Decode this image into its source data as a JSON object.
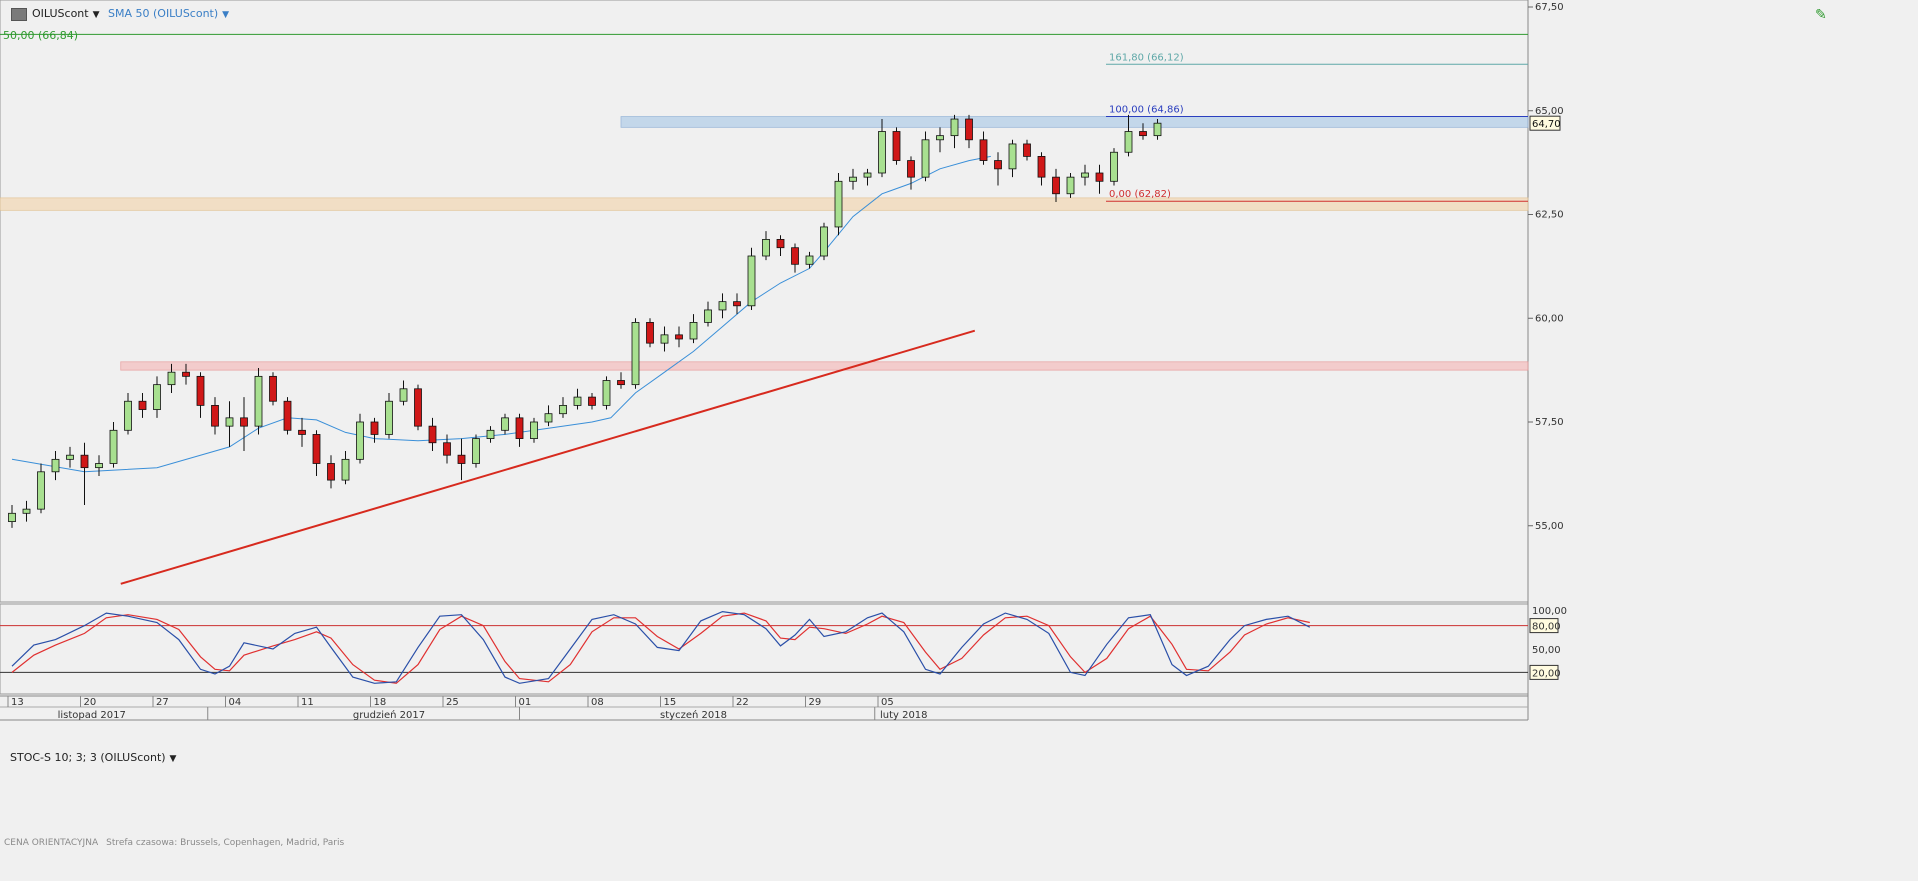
{
  "header": {
    "symbol": "OILUScont",
    "indicator": "SMA 50 (OILUScont)",
    "fib_top_label": "50,00 (66,84)",
    "stoch_label": "STOC-S 10; 3; 3 (OILUScont)",
    "footer_label": "CENA ORIENTACYJNA",
    "footer_timezone": "Strefa czasowa: Brussels, Copenhagen, Madrid, Paris"
  },
  "chart_data": {
    "type": "candlestick",
    "price_axis": {
      "range": [
        53.5,
        67.5
      ],
      "ticks": [
        "67,50",
        "65,00",
        "62,50",
        "60,00",
        "57,50",
        "55,00"
      ],
      "tick_values": [
        67.5,
        65,
        62.5,
        60,
        57.5,
        55
      ]
    },
    "stoch_axis": {
      "ticks": [
        "100,00",
        "80,00",
        "50,00",
        "20,00"
      ],
      "tick_values": [
        100,
        80,
        50,
        20
      ],
      "range": [
        0,
        100
      ]
    },
    "current_price": {
      "value": 64.7,
      "label": "64,70"
    },
    "x_ticks": [
      "13",
      "20",
      "27",
      "04",
      "11",
      "18",
      "25",
      "01",
      "08",
      "15",
      "22",
      "29",
      "05"
    ],
    "x_tick_index": [
      0,
      5,
      10,
      15,
      20,
      25,
      30,
      35,
      40,
      45,
      50,
      55,
      60
    ],
    "months": [
      {
        "label": "listopad 2017",
        "index": 5.5
      },
      {
        "label": "grudzień 2017",
        "index": 26
      },
      {
        "label": "styczeń 2018",
        "index": 47
      },
      {
        "label": "luty 2018",
        "index": 61.5
      }
    ],
    "month_separators": [
      13.5,
      35,
      59.5
    ],
    "fibonacci": [
      {
        "label": "161,80 (66,12)",
        "value": 66.12,
        "color": "#5fa8a8"
      },
      {
        "label": "100,00 (64,86)",
        "value": 64.86,
        "color": "#2b3fbf"
      },
      {
        "label": "0,00 (62,82)",
        "value": 62.82,
        "color": "#d03030"
      },
      {
        "label": "50,00 (66,84)",
        "value": 66.84,
        "color": "#2f9a2f"
      }
    ],
    "zones": [
      {
        "from": 64.6,
        "to": 64.86,
        "start_index": 42,
        "color": "#bcd3ea"
      },
      {
        "from": 62.6,
        "to": 62.9,
        "start_index": -1,
        "color": "#f2dcbe"
      },
      {
        "from": 58.75,
        "to": 58.95,
        "start_index": 7.5,
        "color": "#f4c6c6"
      }
    ],
    "trendline": {
      "start": [
        7.5,
        53.6
      ],
      "end": [
        66.4,
        59.7
      ],
      "color": "#d72a1e"
    },
    "stoch_levels": [
      80,
      20
    ],
    "ohlc": [
      [
        55.1,
        55.5,
        54.95,
        55.3
      ],
      [
        55.3,
        55.6,
        55.1,
        55.4
      ],
      [
        55.4,
        56.5,
        55.3,
        56.3
      ],
      [
        56.3,
        56.8,
        56.1,
        56.6
      ],
      [
        56.6,
        56.9,
        56.4,
        56.7
      ],
      [
        56.7,
        57.0,
        55.5,
        56.4
      ],
      [
        56.4,
        56.7,
        56.2,
        56.5
      ],
      [
        56.5,
        57.5,
        56.4,
        57.3
      ],
      [
        57.3,
        58.2,
        57.2,
        58.0
      ],
      [
        58.0,
        58.2,
        57.6,
        57.8
      ],
      [
        57.8,
        58.6,
        57.6,
        58.4
      ],
      [
        58.4,
        58.9,
        58.2,
        58.7
      ],
      [
        58.7,
        58.9,
        58.4,
        58.6
      ],
      [
        58.6,
        58.7,
        57.6,
        57.9
      ],
      [
        57.9,
        58.1,
        57.2,
        57.4
      ],
      [
        57.4,
        58.0,
        56.9,
        57.6
      ],
      [
        57.6,
        58.1,
        56.8,
        57.4
      ],
      [
        57.4,
        58.8,
        57.2,
        58.6
      ],
      [
        58.6,
        58.7,
        57.9,
        58.0
      ],
      [
        58.0,
        58.1,
        57.2,
        57.3
      ],
      [
        57.3,
        57.6,
        56.9,
        57.2
      ],
      [
        57.2,
        57.3,
        56.2,
        56.5
      ],
      [
        56.5,
        56.7,
        55.9,
        56.1
      ],
      [
        56.1,
        56.8,
        56.0,
        56.6
      ],
      [
        56.6,
        57.7,
        56.5,
        57.5
      ],
      [
        57.5,
        57.6,
        57.0,
        57.2
      ],
      [
        57.2,
        58.2,
        57.1,
        58.0
      ],
      [
        58.0,
        58.5,
        57.9,
        58.3
      ],
      [
        58.3,
        58.4,
        57.3,
        57.4
      ],
      [
        57.4,
        57.6,
        56.8,
        57.0
      ],
      [
        57.0,
        57.2,
        56.5,
        56.7
      ],
      [
        56.7,
        57.1,
        56.1,
        56.5
      ],
      [
        56.5,
        57.2,
        56.4,
        57.1
      ],
      [
        57.1,
        57.4,
        57.0,
        57.3
      ],
      [
        57.3,
        57.7,
        57.2,
        57.6
      ],
      [
        57.6,
        57.7,
        56.9,
        57.1
      ],
      [
        57.1,
        57.6,
        57.0,
        57.5
      ],
      [
        57.5,
        57.9,
        57.4,
        57.7
      ],
      [
        57.7,
        58.1,
        57.6,
        57.9
      ],
      [
        57.9,
        58.3,
        57.8,
        58.1
      ],
      [
        58.1,
        58.2,
        57.8,
        57.9
      ],
      [
        57.9,
        58.6,
        57.8,
        58.5
      ],
      [
        58.5,
        58.7,
        58.3,
        58.4
      ],
      [
        58.4,
        60.0,
        58.3,
        59.9
      ],
      [
        59.9,
        60.0,
        59.3,
        59.4
      ],
      [
        59.4,
        59.8,
        59.2,
        59.6
      ],
      [
        59.6,
        59.8,
        59.3,
        59.5
      ],
      [
        59.5,
        60.1,
        59.4,
        59.9
      ],
      [
        59.9,
        60.4,
        59.8,
        60.2
      ],
      [
        60.2,
        60.6,
        60.0,
        60.4
      ],
      [
        60.4,
        60.6,
        60.1,
        60.3
      ],
      [
        60.3,
        61.7,
        60.2,
        61.5
      ],
      [
        61.5,
        62.1,
        61.4,
        61.9
      ],
      [
        61.9,
        62.0,
        61.5,
        61.7
      ],
      [
        61.7,
        61.8,
        61.1,
        61.3
      ],
      [
        61.3,
        61.6,
        61.2,
        61.5
      ],
      [
        61.5,
        62.3,
        61.4,
        62.2
      ],
      [
        62.2,
        63.5,
        62.0,
        63.3
      ],
      [
        63.3,
        63.6,
        63.1,
        63.4
      ],
      [
        63.4,
        63.6,
        63.2,
        63.5
      ],
      [
        63.5,
        64.8,
        63.4,
        64.5
      ],
      [
        64.5,
        64.6,
        63.7,
        63.8
      ],
      [
        63.8,
        63.9,
        63.1,
        63.4
      ],
      [
        63.4,
        64.5,
        63.3,
        64.3
      ],
      [
        64.3,
        64.6,
        64.0,
        64.4
      ],
      [
        64.4,
        64.9,
        64.1,
        64.8
      ],
      [
        64.8,
        64.9,
        64.1,
        64.3
      ],
      [
        64.3,
        64.5,
        63.7,
        63.8
      ],
      [
        63.8,
        64.0,
        63.2,
        63.6
      ],
      [
        63.6,
        64.3,
        63.4,
        64.2
      ],
      [
        64.2,
        64.3,
        63.8,
        63.9
      ],
      [
        63.9,
        64.0,
        63.2,
        63.4
      ],
      [
        63.4,
        63.6,
        62.8,
        63.0
      ],
      [
        63.0,
        63.5,
        62.9,
        63.4
      ],
      [
        63.4,
        63.7,
        63.2,
        63.5
      ],
      [
        63.5,
        63.7,
        63.0,
        63.3
      ],
      [
        63.3,
        64.1,
        63.2,
        64.0
      ],
      [
        64.0,
        64.9,
        63.9,
        64.5
      ],
      [
        64.5,
        64.7,
        64.3,
        64.4
      ],
      [
        64.4,
        64.8,
        64.3,
        64.7
      ]
    ],
    "sma50": [
      [
        0,
        56.6
      ],
      [
        5,
        56.3
      ],
      [
        10,
        56.4
      ],
      [
        15,
        56.9
      ],
      [
        17,
        57.35
      ],
      [
        19,
        57.6
      ],
      [
        21,
        57.55
      ],
      [
        23,
        57.25
      ],
      [
        25,
        57.1
      ],
      [
        28,
        57.05
      ],
      [
        31,
        57.1
      ],
      [
        34,
        57.2
      ],
      [
        37,
        57.35
      ],
      [
        40,
        57.5
      ],
      [
        41.3,
        57.6
      ],
      [
        43,
        58.2
      ],
      [
        45,
        58.7
      ],
      [
        47,
        59.2
      ],
      [
        49,
        59.8
      ],
      [
        51,
        60.4
      ],
      [
        53,
        60.85
      ],
      [
        55,
        61.2
      ],
      [
        56,
        61.6
      ],
      [
        58,
        62.45
      ],
      [
        60,
        63.0
      ],
      [
        62,
        63.25
      ],
      [
        64,
        63.6
      ],
      [
        66,
        63.8
      ],
      [
        67.5,
        63.9
      ]
    ],
    "stoch_k": [
      [
        0,
        28
      ],
      [
        1.5,
        55
      ],
      [
        3,
        62
      ],
      [
        5,
        80
      ],
      [
        6.5,
        96
      ],
      [
        8,
        92
      ],
      [
        10,
        84
      ],
      [
        11.5,
        62
      ],
      [
        13,
        24
      ],
      [
        14,
        18
      ],
      [
        15,
        28
      ],
      [
        16,
        58
      ],
      [
        18,
        50
      ],
      [
        19.5,
        70
      ],
      [
        21,
        78
      ],
      [
        22,
        52
      ],
      [
        23.5,
        14
      ],
      [
        25,
        6
      ],
      [
        26.5,
        8
      ],
      [
        28,
        52
      ],
      [
        29.5,
        92
      ],
      [
        31,
        94
      ],
      [
        32.5,
        62
      ],
      [
        34,
        14
      ],
      [
        35,
        6
      ],
      [
        37,
        12
      ],
      [
        38.5,
        50
      ],
      [
        40,
        88
      ],
      [
        41.5,
        94
      ],
      [
        43,
        82
      ],
      [
        44.5,
        52
      ],
      [
        46,
        48
      ],
      [
        47.5,
        86
      ],
      [
        49,
        98
      ],
      [
        50.5,
        94
      ],
      [
        52,
        76
      ],
      [
        53,
        54
      ],
      [
        54,
        68
      ],
      [
        55,
        88
      ],
      [
        56,
        66
      ],
      [
        57.5,
        72
      ],
      [
        59,
        90
      ],
      [
        60,
        96
      ],
      [
        61.5,
        72
      ],
      [
        63,
        24
      ],
      [
        64,
        18
      ],
      [
        65.5,
        52
      ],
      [
        67,
        82
      ],
      [
        68.5,
        96
      ],
      [
        70,
        88
      ],
      [
        71.5,
        70
      ],
      [
        73,
        20
      ],
      [
        74,
        16
      ],
      [
        75.5,
        56
      ],
      [
        77,
        90
      ],
      [
        78.5,
        94
      ],
      [
        80,
        30
      ],
      [
        81,
        16
      ],
      [
        82.5,
        28
      ],
      [
        84,
        62
      ],
      [
        85,
        80
      ],
      [
        86.5,
        88
      ],
      [
        88,
        92
      ],
      [
        89.5,
        78
      ]
    ],
    "stoch_d": [
      [
        0,
        20
      ],
      [
        1.5,
        42
      ],
      [
        3,
        55
      ],
      [
        5,
        70
      ],
      [
        6.5,
        90
      ],
      [
        8,
        94
      ],
      [
        10,
        88
      ],
      [
        11.5,
        75
      ],
      [
        13,
        40
      ],
      [
        14,
        24
      ],
      [
        15,
        22
      ],
      [
        16,
        42
      ],
      [
        18,
        54
      ],
      [
        19.5,
        62
      ],
      [
        21,
        72
      ],
      [
        22,
        64
      ],
      [
        23.5,
        30
      ],
      [
        25,
        10
      ],
      [
        26.5,
        6
      ],
      [
        28,
        30
      ],
      [
        29.5,
        75
      ],
      [
        31,
        92
      ],
      [
        32.5,
        80
      ],
      [
        34,
        34
      ],
      [
        35,
        12
      ],
      [
        37,
        8
      ],
      [
        38.5,
        30
      ],
      [
        40,
        72
      ],
      [
        41.5,
        90
      ],
      [
        43,
        90
      ],
      [
        44.5,
        66
      ],
      [
        46,
        50
      ],
      [
        47.5,
        70
      ],
      [
        49,
        92
      ],
      [
        50.5,
        96
      ],
      [
        52,
        86
      ],
      [
        53,
        64
      ],
      [
        54,
        62
      ],
      [
        55,
        78
      ],
      [
        56,
        76
      ],
      [
        57.5,
        70
      ],
      [
        59,
        82
      ],
      [
        60,
        92
      ],
      [
        61.5,
        84
      ],
      [
        63,
        46
      ],
      [
        64,
        24
      ],
      [
        65.5,
        38
      ],
      [
        67,
        68
      ],
      [
        68.5,
        90
      ],
      [
        70,
        92
      ],
      [
        71.5,
        80
      ],
      [
        73,
        40
      ],
      [
        74,
        20
      ],
      [
        75.5,
        38
      ],
      [
        77,
        76
      ],
      [
        78.5,
        92
      ],
      [
        80,
        56
      ],
      [
        81,
        24
      ],
      [
        82.5,
        22
      ],
      [
        84,
        46
      ],
      [
        85,
        68
      ],
      [
        86.5,
        82
      ],
      [
        88,
        90
      ],
      [
        89.5,
        84
      ]
    ]
  },
  "colors": {
    "up_fill": "#a8e090",
    "down_fill": "#d01818",
    "candle_border": "#111111",
    "sma": "#3a8fd8",
    "stoch_k": "#2a4fa8",
    "stoch_d": "#e03030",
    "stoch_level": "#cc3030",
    "axis_text": "#333333",
    "pane_bg": "#f0f0f0",
    "grid": "#c8c8c8"
  },
  "icons": {
    "symbol_icon": "chart-grid-icon",
    "draw_icon": "pencil-icon"
  }
}
